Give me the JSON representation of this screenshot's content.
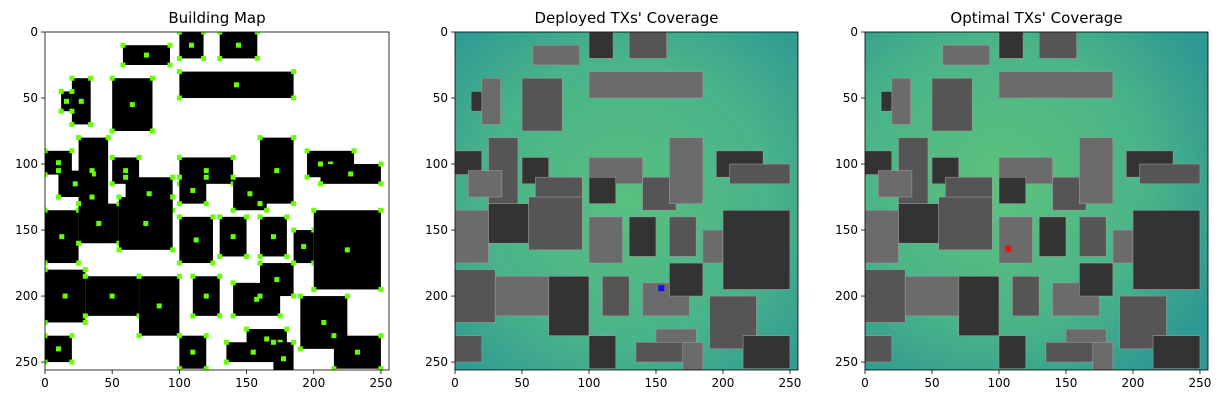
{
  "chart_data": [
    {
      "type": "heatmap",
      "title": "Building Map",
      "xlim": [
        0,
        256
      ],
      "ylim": [
        256,
        0
      ],
      "xticks": [
        0,
        50,
        100,
        150,
        200,
        250
      ],
      "yticks": [
        0,
        50,
        100,
        150,
        200,
        250
      ],
      "colors": {
        "background": "#ffffff",
        "building": "#000000",
        "marker": "#66ff00"
      }
    },
    {
      "type": "heatmap",
      "title": "Deployed TXs' Coverage",
      "xlim": [
        0,
        256
      ],
      "ylim": [
        256,
        0
      ],
      "xticks": [
        0,
        50,
        100,
        150,
        200,
        250
      ],
      "yticks": [
        0,
        50,
        100,
        150,
        200,
        250
      ],
      "tx_points": [
        {
          "x": 154,
          "y": 194
        }
      ],
      "colors": {
        "field": "#4fb887",
        "tx": "#1111ee"
      }
    },
    {
      "type": "heatmap",
      "title": "Optimal TXs' Coverage",
      "xlim": [
        0,
        256
      ],
      "ylim": [
        256,
        0
      ],
      "xticks": [
        0,
        50,
        100,
        150,
        200,
        250
      ],
      "yticks": [
        0,
        50,
        100,
        150,
        200,
        250
      ],
      "tx_points": [
        {
          "x": 107,
          "y": 164
        }
      ],
      "colors": {
        "field": "#4fb887",
        "tx": "#ee1111"
      }
    }
  ]
}
